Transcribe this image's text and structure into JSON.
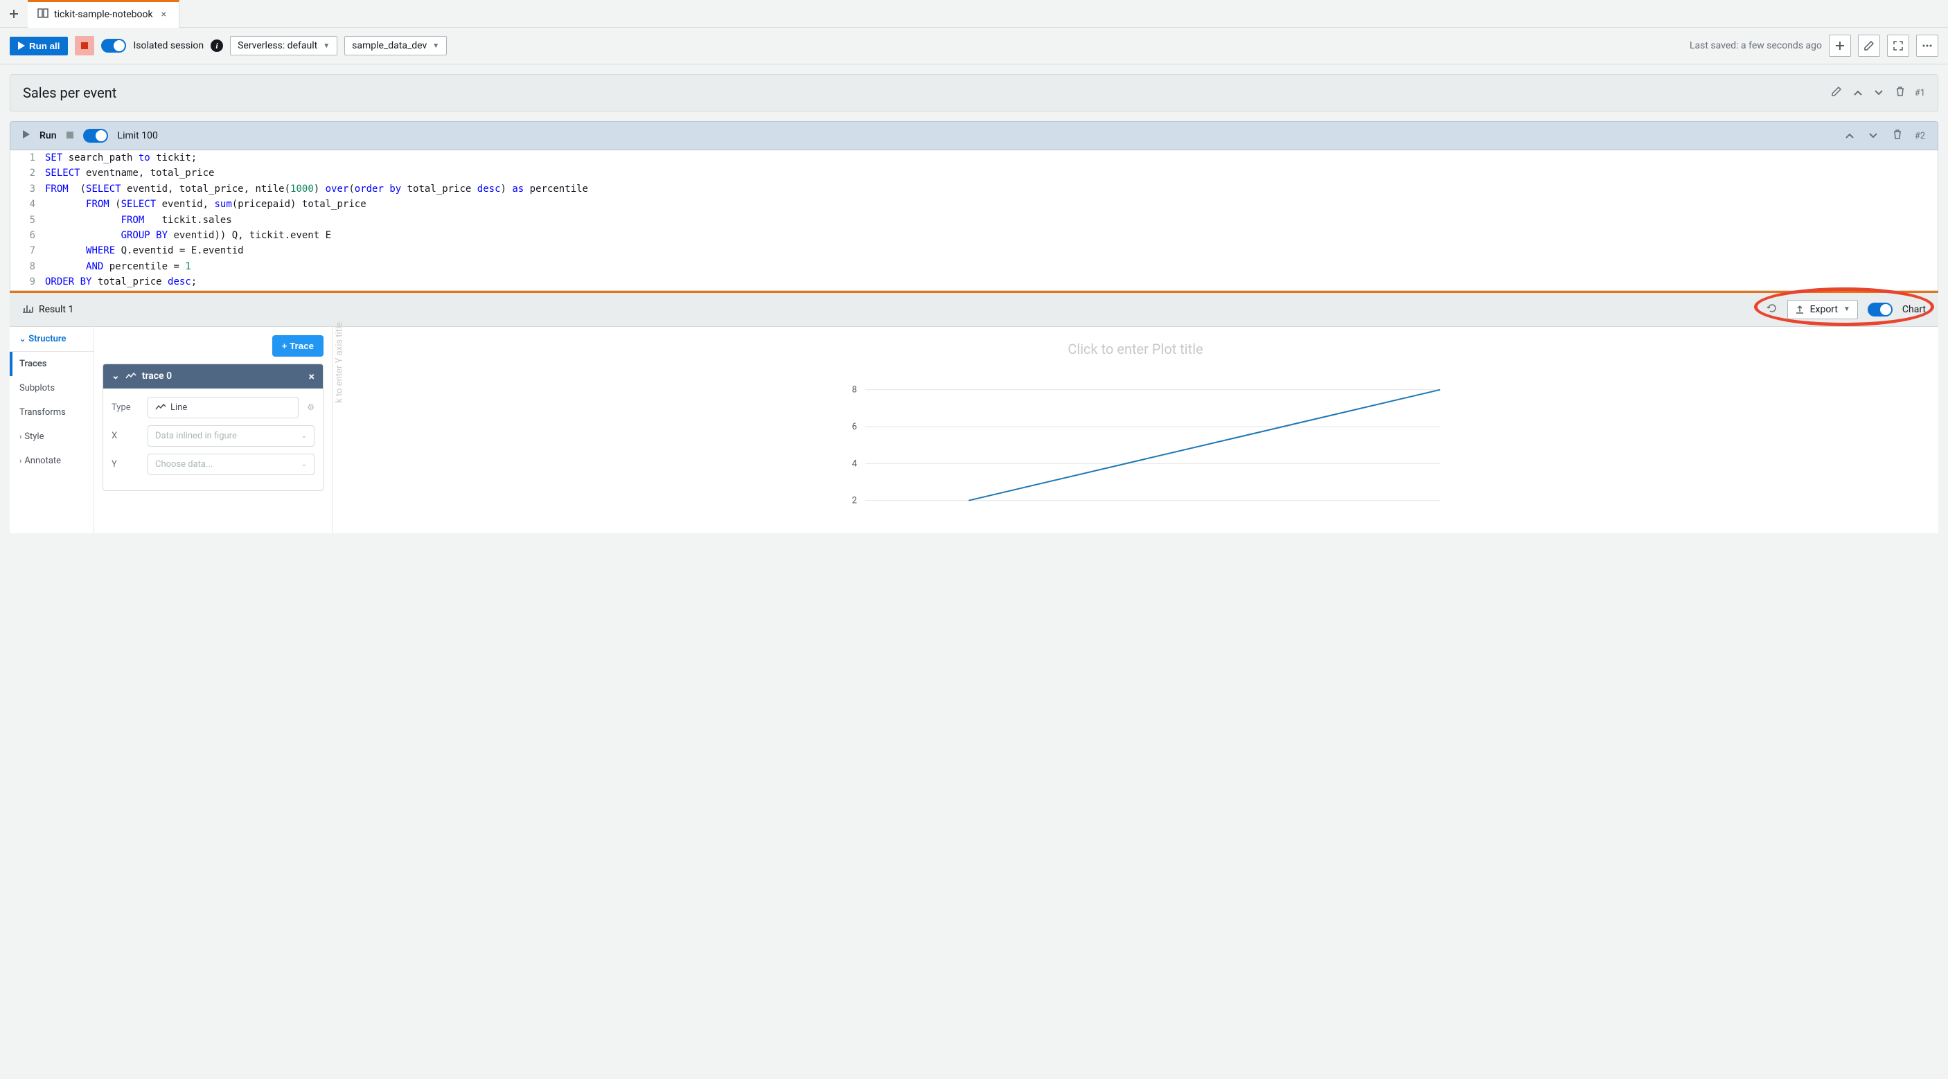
{
  "tabbar": {
    "tab_label": "tickit-sample-notebook"
  },
  "toolbar": {
    "run_all": "Run all",
    "isolated": "Isolated session",
    "workgroup": "Serverless: default",
    "database": "sample_data_dev",
    "last_saved": "Last saved: a few seconds ago"
  },
  "cell1": {
    "title": "Sales per event",
    "num": "#1"
  },
  "cell2": {
    "run": "Run",
    "limit": "Limit 100",
    "num": "#2",
    "code": [
      {
        "n": "1",
        "tokens": [
          [
            "kw",
            "SET"
          ],
          [
            "",
            " search_path "
          ],
          [
            "kw",
            "to"
          ],
          [
            "",
            " tickit;"
          ]
        ]
      },
      {
        "n": "2",
        "tokens": [
          [
            "kw",
            "SELECT"
          ],
          [
            "",
            " eventname, total_price"
          ]
        ]
      },
      {
        "n": "3",
        "tokens": [
          [
            "kw",
            "FROM"
          ],
          [
            "",
            "  ("
          ],
          [
            "kw",
            "SELECT"
          ],
          [
            "",
            " eventid, total_price, ntile("
          ],
          [
            "num",
            "1000"
          ],
          [
            "",
            ") "
          ],
          [
            "kw",
            "over"
          ],
          [
            "",
            "("
          ],
          [
            "kw",
            "order by"
          ],
          [
            "",
            " total_price "
          ],
          [
            "kw",
            "desc"
          ],
          [
            "",
            ") "
          ],
          [
            "kw",
            "as"
          ],
          [
            "",
            " percentile"
          ]
        ]
      },
      {
        "n": "4",
        "tokens": [
          [
            "",
            "       "
          ],
          [
            "kw",
            "FROM"
          ],
          [
            "",
            " ("
          ],
          [
            "kw",
            "SELECT"
          ],
          [
            "",
            " eventid, "
          ],
          [
            "kw",
            "sum"
          ],
          [
            "",
            "(pricepaid) total_price"
          ]
        ]
      },
      {
        "n": "5",
        "tokens": [
          [
            "",
            "             "
          ],
          [
            "kw",
            "FROM"
          ],
          [
            "",
            "   tickit.sales"
          ]
        ]
      },
      {
        "n": "6",
        "tokens": [
          [
            "",
            "             "
          ],
          [
            "kw",
            "GROUP BY"
          ],
          [
            "",
            " eventid)) Q, tickit.event E"
          ]
        ]
      },
      {
        "n": "7",
        "tokens": [
          [
            "",
            "       "
          ],
          [
            "kw",
            "WHERE"
          ],
          [
            "",
            " Q.eventid = E.eventid"
          ]
        ]
      },
      {
        "n": "8",
        "tokens": [
          [
            "",
            "       "
          ],
          [
            "kw",
            "AND"
          ],
          [
            "",
            " percentile = "
          ],
          [
            "num",
            "1"
          ]
        ]
      },
      {
        "n": "9",
        "tokens": [
          [
            "kw",
            "ORDER BY"
          ],
          [
            "",
            " total_price "
          ],
          [
            "kw",
            "desc"
          ],
          [
            "",
            ";"
          ]
        ]
      }
    ]
  },
  "result": {
    "tab": "Result 1",
    "export": "Export",
    "chart": "Chart"
  },
  "structure": {
    "header": "Structure",
    "items": [
      "Traces",
      "Subplots",
      "Transforms"
    ],
    "style": "Style",
    "annotate": "Annotate"
  },
  "trace": {
    "btn": "Trace",
    "name": "trace 0",
    "type_label": "Type",
    "type_value": "Line",
    "x_label": "X",
    "x_placeholder": "Data inlined in figure",
    "y_label": "Y",
    "y_placeholder": "Choose data..."
  },
  "chart": {
    "title_placeholder": "Click to enter Plot title",
    "yaxis_placeholder": "k to enter Y axis title",
    "yticks": [
      2,
      4,
      6,
      8
    ],
    "ylim": [
      1.5,
      9
    ],
    "line": {
      "x1": 0.18,
      "y1": 2,
      "x2": 1.0,
      "y2": 8
    },
    "line_color": "#1f77b4",
    "grid_color": "#e6e6e6"
  }
}
